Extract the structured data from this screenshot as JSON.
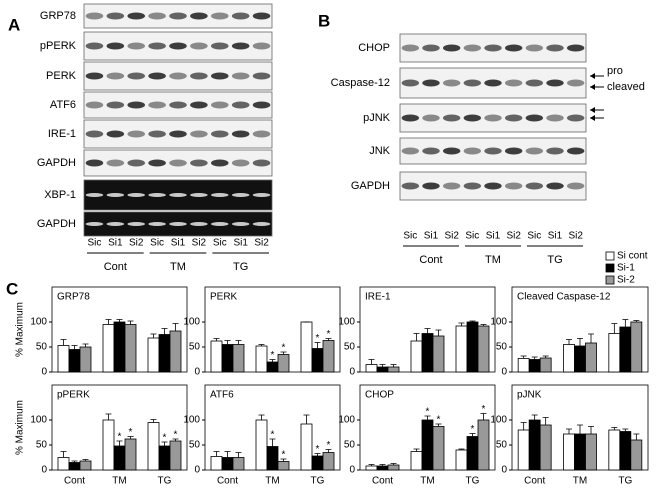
{
  "panel_labels": [
    "A",
    "B",
    "C"
  ],
  "blots_a": {
    "rows": [
      "GRP78",
      "pPERK",
      "PERK",
      "ATF6",
      "IRE-1",
      "GAPDH",
      "XBP-1",
      "GAPDH"
    ],
    "lanes": [
      "Sic",
      "Si1",
      "Si2",
      "Sic",
      "Si1",
      "Si2",
      "Sic",
      "Si1",
      "Si2"
    ],
    "groups": [
      "Cont",
      "TM",
      "TG"
    ]
  },
  "blots_b": {
    "rows": [
      "CHOP",
      "Caspase-12",
      "pJNK",
      "JNK",
      "GAPDH"
    ],
    "lanes": [
      "Sic",
      "Si1",
      "Si2",
      "Sic",
      "Si1",
      "Si2",
      "Sic",
      "Si1",
      "Si2"
    ],
    "groups": [
      "Cont",
      "TM",
      "TG"
    ],
    "arrows": [
      "pro",
      "cleaved"
    ]
  },
  "legend": [
    {
      "name": "Si cont",
      "color": "#ffffff"
    },
    {
      "name": "Si-1",
      "color": "#000000"
    },
    {
      "name": "Si-2",
      "color": "#999999"
    }
  ],
  "y_label": "% Maximum",
  "chart_data": [
    {
      "type": "bar",
      "title": "GRP78",
      "categories": [
        null,
        null,
        null
      ],
      "ylim": [
        0,
        170
      ],
      "yticks": [
        0,
        50,
        100
      ],
      "series": [
        {
          "values": [
            53,
            95,
            68
          ],
          "errors": [
            12,
            10,
            8
          ]
        },
        {
          "values": [
            45,
            100,
            75
          ],
          "errors": [
            8,
            5,
            12
          ]
        },
        {
          "values": [
            50,
            95,
            82
          ],
          "errors": [
            6,
            7,
            15
          ]
        }
      ]
    },
    {
      "type": "bar",
      "title": "PERK",
      "categories": [
        null,
        null,
        null
      ],
      "ylim": [
        0,
        170
      ],
      "yticks": [
        0,
        50,
        100
      ],
      "series": [
        {
          "values": [
            62,
            52,
            100
          ],
          "errors": [
            5,
            3,
            0
          ]
        },
        {
          "values": [
            55,
            20,
            47
          ],
          "errors": [
            8,
            5,
            12
          ],
          "annotations": [
            null,
            "*",
            "*"
          ]
        },
        {
          "values": [
            55,
            35,
            63
          ],
          "errors": [
            8,
            5,
            4
          ],
          "annotations": [
            null,
            "*",
            "*"
          ]
        }
      ]
    },
    {
      "type": "bar",
      "title": "IRE-1",
      "categories": [
        null,
        null,
        null
      ],
      "ylim": [
        0,
        170
      ],
      "yticks": [
        0,
        50,
        100
      ],
      "series": [
        {
          "values": [
            15,
            62,
            92
          ],
          "errors": [
            10,
            15,
            6
          ]
        },
        {
          "values": [
            10,
            77,
            100
          ],
          "errors": [
            5,
            10,
            2
          ]
        },
        {
          "values": [
            10,
            72,
            92
          ],
          "errors": [
            5,
            12,
            3
          ]
        }
      ]
    },
    {
      "type": "bar",
      "title": "Cleaved Caspase-12",
      "categories": [
        null,
        null,
        null
      ],
      "ylim": [
        0,
        170
      ],
      "yticks": [
        0,
        50,
        100
      ],
      "series": [
        {
          "values": [
            27,
            55,
            77
          ],
          "errors": [
            5,
            10,
            20
          ]
        },
        {
          "values": [
            25,
            52,
            90
          ],
          "errors": [
            5,
            15,
            15
          ]
        },
        {
          "values": [
            28,
            58,
            100
          ],
          "errors": [
            4,
            18,
            3
          ]
        }
      ]
    },
    {
      "type": "bar",
      "title": "pPERK",
      "categories": [
        "Cont",
        "TM",
        "TG"
      ],
      "ylim": [
        0,
        170
      ],
      "yticks": [
        0,
        50,
        100
      ],
      "series": [
        {
          "values": [
            25,
            100,
            95
          ],
          "errors": [
            12,
            12,
            6
          ]
        },
        {
          "values": [
            15,
            48,
            48
          ],
          "errors": [
            3,
            10,
            8
          ],
          "annotations": [
            null,
            "*",
            "*"
          ]
        },
        {
          "values": [
            18,
            62,
            58
          ],
          "errors": [
            3,
            5,
            4
          ],
          "annotations": [
            null,
            "*",
            "*"
          ]
        }
      ]
    },
    {
      "type": "bar",
      "title": "ATF6",
      "categories": [
        "Cont",
        "TM",
        "TG"
      ],
      "ylim": [
        0,
        170
      ],
      "yticks": [
        0,
        50,
        100
      ],
      "series": [
        {
          "values": [
            27,
            100,
            92
          ],
          "errors": [
            10,
            10,
            18
          ]
        },
        {
          "values": [
            25,
            47,
            28
          ],
          "errors": [
            12,
            15,
            5
          ],
          "annotations": [
            null,
            "*",
            "*"
          ]
        },
        {
          "values": [
            25,
            17,
            35
          ],
          "errors": [
            10,
            5,
            6
          ],
          "annotations": [
            null,
            "*",
            "*"
          ]
        }
      ]
    },
    {
      "type": "bar",
      "title": "CHOP",
      "categories": [
        "Cont",
        "TM",
        "TG"
      ],
      "ylim": [
        0,
        170
      ],
      "yticks": [
        0,
        50,
        100
      ],
      "series": [
        {
          "values": [
            8,
            37,
            40
          ],
          "errors": [
            3,
            5,
            2
          ]
        },
        {
          "values": [
            8,
            100,
            67
          ],
          "errors": [
            3,
            8,
            6
          ],
          "annotations": [
            null,
            "*",
            "*"
          ]
        },
        {
          "values": [
            10,
            87,
            100
          ],
          "errors": [
            3,
            5,
            13
          ],
          "annotations": [
            null,
            "*",
            "*"
          ]
        }
      ]
    },
    {
      "type": "bar",
      "title": "pJNK",
      "categories": [
        "Cont",
        "TM",
        "TG"
      ],
      "ylim": [
        0,
        170
      ],
      "yticks": [
        0,
        50,
        100
      ],
      "series": [
        {
          "values": [
            80,
            72,
            80
          ],
          "errors": [
            15,
            10,
            5
          ]
        },
        {
          "values": [
            100,
            72,
            77
          ],
          "errors": [
            10,
            18,
            5
          ]
        },
        {
          "values": [
            90,
            72,
            60
          ],
          "errors": [
            15,
            15,
            12
          ]
        }
      ]
    }
  ]
}
